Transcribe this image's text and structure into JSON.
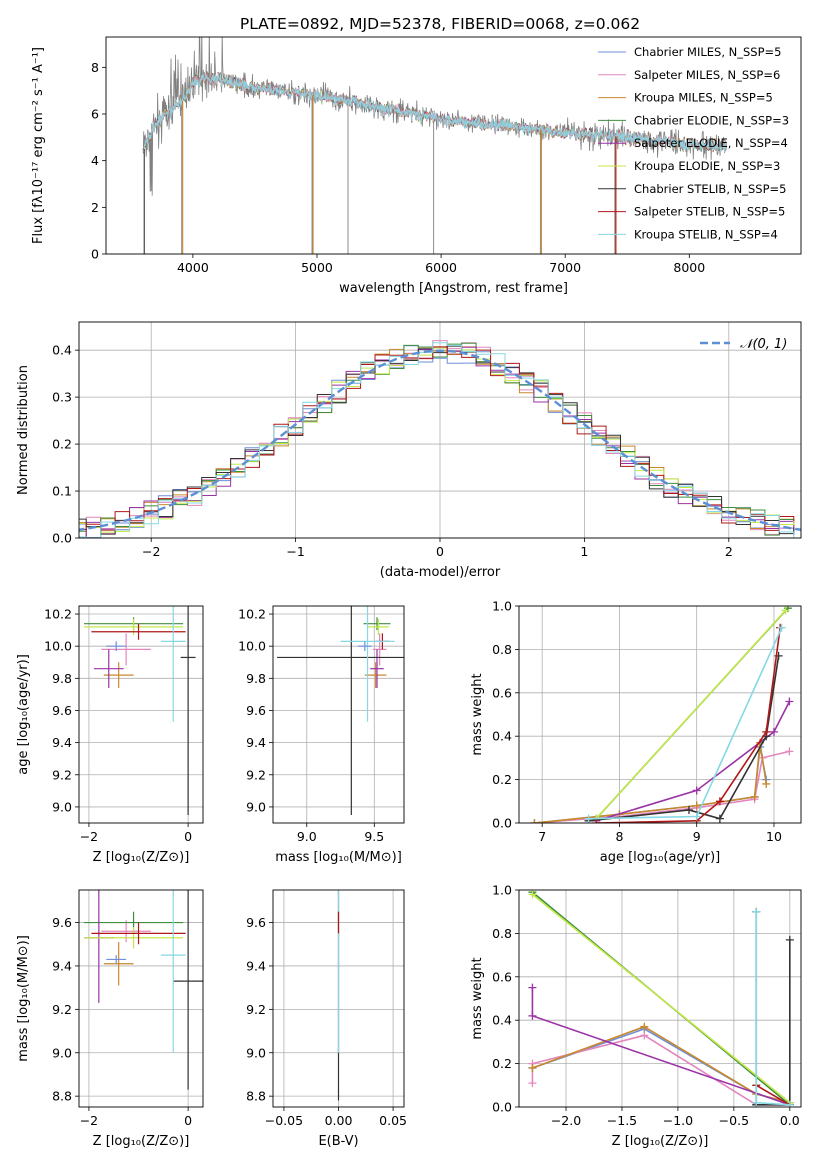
{
  "title": "PLATE=0892, MJD=52378, FIBERID=0068, z=0.062",
  "series_colors": [
    "#6f8fd8",
    "#e487bf",
    "#c8892c",
    "#3f8f3f",
    "#9b32a6",
    "#c4e84a",
    "#333333",
    "#b01818",
    "#86d8e4"
  ],
  "chart_data": [
    {
      "id": "spectrum",
      "type": "line",
      "xlabel": "wavelength [Angstrom, rest frame]",
      "ylabel": "Flux [fλ10⁻¹⁷ erg cm⁻² s⁻¹ A⁻¹]",
      "xlim": [
        3300,
        8900
      ],
      "ylim": [
        0,
        9.3
      ],
      "xticks": [
        4000,
        5000,
        6000,
        7000,
        8000
      ],
      "yticks": [
        0,
        2,
        4,
        6,
        8
      ],
      "grid": false,
      "legend_position": "top-right",
      "data_color": "#808080",
      "legend": [
        {
          "label": "Chabrier MILES, N_SSP=5"
        },
        {
          "label": "Salpeter MILES, N_SSP=6"
        },
        {
          "label": "Kroupa MILES, N_SSP=5"
        },
        {
          "label": "Chabrier ELODIE, N_SSP=3"
        },
        {
          "label": "Salpeter ELODIE, N_SSP=4"
        },
        {
          "label": "Kroupa ELODIE, N_SSP=3"
        },
        {
          "label": "Chabrier STELIB, N_SSP=5"
        },
        {
          "label": "Salpeter STELIB, N_SSP=5"
        },
        {
          "label": "Kroupa STELIB, N_SSP=4"
        }
      ],
      "continuum": {
        "x": [
          3600,
          3700,
          3800,
          3900,
          4000,
          4100,
          4300,
          4500,
          5000,
          5500,
          6000,
          6500,
          7000,
          7500,
          8000,
          8300
        ],
        "y": [
          4.5,
          5.6,
          6.0,
          6.5,
          7.3,
          7.6,
          7.4,
          7.1,
          6.8,
          6.3,
          5.8,
          5.5,
          5.2,
          5.0,
          4.7,
          4.6
        ]
      },
      "spikes_down": [
        3910,
        4960,
        5250,
        5940,
        6800,
        7400
      ]
    },
    {
      "id": "residuals",
      "type": "histogram",
      "xlabel": "(data-model)/error",
      "ylabel": "Normed distribution",
      "xlim": [
        -2.5,
        2.5
      ],
      "ylim": [
        0,
        0.46
      ],
      "xticks": [
        -2,
        -1,
        0,
        1,
        2
      ],
      "yticks": [
        0.0,
        0.1,
        0.2,
        0.3,
        0.4
      ],
      "grid": true,
      "legend_position": "top-right",
      "normal_label": "𝒩(0, 1)",
      "normal_color": "#5b8fd6",
      "bin_width": 0.1
    },
    {
      "id": "age_vs_Z",
      "type": "errorbar",
      "xlabel": "Z [log₁₀(Z/Z⊙)]",
      "ylabel": "age  [log₁₀(age/yr)]",
      "xlim": [
        -2.2,
        0.3
      ],
      "ylim": [
        8.9,
        10.25
      ],
      "xticks": [
        -2,
        0
      ],
      "yticks": [
        9.0,
        9.2,
        9.4,
        9.6,
        9.8,
        10.0,
        10.2
      ],
      "grid": true,
      "points": [
        {
          "x": -1.25,
          "xerr": 0.5,
          "y": 9.98,
          "yerr": 0.1,
          "color": 1
        },
        {
          "x": -1.4,
          "xerr": 0.3,
          "y": 9.82,
          "yerr": 0.08,
          "color": 2
        },
        {
          "x": -1.1,
          "xerr": 1.0,
          "y": 10.14,
          "yerr": 0.04,
          "color": 3
        },
        {
          "x": -1.6,
          "xerr": 0.3,
          "y": 9.86,
          "yerr": 0.12,
          "color": 4
        },
        {
          "x": -1.1,
          "xerr": 1.0,
          "y": 10.12,
          "yerr": 0.05,
          "color": 5
        },
        {
          "x": 0.0,
          "xerr": 0.15,
          "y": 9.93,
          "yerr": 0.98,
          "color": 6
        },
        {
          "x": -1.0,
          "xerr": 0.95,
          "y": 10.09,
          "yerr": 0.05,
          "color": 7
        },
        {
          "x": -0.3,
          "xerr": 0.25,
          "y": 10.03,
          "yerr": 0.5,
          "color": 8
        },
        {
          "x": -1.45,
          "xerr": 0.2,
          "y": 10.0,
          "yerr": 0.03,
          "color": 0
        }
      ]
    },
    {
      "id": "age_vs_mass",
      "type": "errorbar",
      "xlabel": "mass [log₁₀(M/M⊙)]",
      "ylabel": "",
      "xlim": [
        8.75,
        9.72
      ],
      "ylim": [
        8.9,
        10.25
      ],
      "xticks": [
        9.0,
        9.5
      ],
      "yticks": [
        9.0,
        9.2,
        9.4,
        9.6,
        9.8,
        10.0,
        10.2
      ],
      "grid": true,
      "points": [
        {
          "x": 9.54,
          "xerr": 0.05,
          "y": 9.98,
          "yerr": 0.1,
          "color": 1
        },
        {
          "x": 9.51,
          "xerr": 0.08,
          "y": 9.82,
          "yerr": 0.08,
          "color": 2
        },
        {
          "x": 9.52,
          "xerr": 0.1,
          "y": 10.14,
          "yerr": 0.04,
          "color": 3
        },
        {
          "x": 9.52,
          "xerr": 0.05,
          "y": 9.86,
          "yerr": 0.12,
          "color": 4
        },
        {
          "x": 9.53,
          "xerr": 0.08,
          "y": 10.12,
          "yerr": 0.05,
          "color": 5
        },
        {
          "x": 9.33,
          "xerr": 0.55,
          "y": 9.93,
          "yerr": 0.98,
          "color": 6
        },
        {
          "x": 9.56,
          "xerr": 0.05,
          "y": 10.03,
          "yerr": 0.05,
          "color": 7
        },
        {
          "x": 9.45,
          "xerr": 0.2,
          "y": 10.03,
          "yerr": 0.5,
          "color": 8
        },
        {
          "x": 9.43,
          "xerr": 0.05,
          "y": 10.0,
          "yerr": 0.03,
          "color": 0
        }
      ]
    },
    {
      "id": "weight_vs_age",
      "type": "line",
      "xlabel": "age  [log₁₀(age/yr)]",
      "ylabel": "mass weight",
      "xlim": [
        6.7,
        10.35
      ],
      "ylim": [
        0.0,
        1.0
      ],
      "xticks": [
        7,
        8,
        9,
        10
      ],
      "yticks": [
        0.0,
        0.2,
        0.4,
        0.6,
        0.8,
        1.0
      ],
      "grid": true,
      "series": [
        {
          "color": 0,
          "x": [
            6.9,
            8.0,
            9.0,
            9.75,
            9.82,
            9.9
          ],
          "y": [
            0.0,
            0.04,
            0.08,
            0.12,
            0.35,
            0.2
          ]
        },
        {
          "color": 1,
          "x": [
            6.9,
            8.0,
            9.0,
            9.75,
            9.85,
            10.2
          ],
          "y": [
            0.0,
            0.03,
            0.07,
            0.11,
            0.3,
            0.33
          ]
        },
        {
          "color": 2,
          "x": [
            6.9,
            8.0,
            9.0,
            9.75,
            9.82,
            9.9
          ],
          "y": [
            0.0,
            0.04,
            0.08,
            0.12,
            0.37,
            0.18
          ]
        },
        {
          "color": 3,
          "x": [
            7.7,
            10.18
          ],
          "y": [
            0.02,
            0.99
          ]
        },
        {
          "color": 4,
          "x": [
            7.7,
            9.0,
            10.0,
            10.2
          ],
          "y": [
            0.01,
            0.15,
            0.42,
            0.56
          ]
        },
        {
          "color": 5,
          "x": [
            7.7,
            10.15
          ],
          "y": [
            0.02,
            0.98
          ]
        },
        {
          "color": 6,
          "x": [
            7.6,
            8.9,
            9.3,
            9.9,
            10.06
          ],
          "y": [
            0.01,
            0.06,
            0.02,
            0.4,
            0.77
          ]
        },
        {
          "color": 7,
          "x": [
            7.7,
            9.0,
            9.3,
            9.9,
            10.08
          ],
          "y": [
            0.0,
            0.01,
            0.1,
            0.42,
            0.9
          ]
        },
        {
          "color": 8,
          "x": [
            7.6,
            9.0,
            10.1
          ],
          "y": [
            0.02,
            0.03,
            0.9
          ]
        }
      ]
    },
    {
      "id": "mass_vs_Z",
      "type": "errorbar",
      "xlabel": "Z [log₁₀(Z/Z⊙)]",
      "ylabel": "mass [log₁₀(M/M⊙)]",
      "xlim": [
        -2.2,
        0.3
      ],
      "ylim": [
        8.75,
        9.75
      ],
      "xticks": [
        -2,
        0
      ],
      "yticks": [
        8.8,
        9.0,
        9.2,
        9.4,
        9.6
      ],
      "grid": true,
      "points": [
        {
          "x": -1.25,
          "xerr": 0.5,
          "y": 9.56,
          "yerr": 0.05,
          "color": 1
        },
        {
          "x": -1.4,
          "xerr": 0.3,
          "y": 9.41,
          "yerr": 0.1,
          "color": 2
        },
        {
          "x": -1.1,
          "xerr": 1.0,
          "y": 9.6,
          "yerr": 0.05,
          "color": 3
        },
        {
          "x": -1.8,
          "xerr": 0.3,
          "y": 9.53,
          "yerr": 0.3,
          "color": 4
        },
        {
          "x": -1.1,
          "xerr": 1.0,
          "y": 9.53,
          "yerr": 0.05,
          "color": 5
        },
        {
          "x": 0.0,
          "xerr": 0.3,
          "y": 9.33,
          "yerr": 0.5,
          "color": 6
        },
        {
          "x": -1.0,
          "xerr": 0.95,
          "y": 9.55,
          "yerr": 0.05,
          "color": 7
        },
        {
          "x": -0.3,
          "xerr": 0.25,
          "y": 9.45,
          "yerr": 0.45,
          "color": 8
        },
        {
          "x": -1.45,
          "xerr": 0.2,
          "y": 9.43,
          "yerr": 0.02,
          "color": 0
        }
      ]
    },
    {
      "id": "mass_vs_ebv",
      "type": "errorbar",
      "xlabel": "E(B-V)",
      "ylabel": "",
      "xlim": [
        -0.06,
        0.06
      ],
      "ylim": [
        8.75,
        9.75
      ],
      "xticks": [
        -0.05,
        0.0,
        0.05
      ],
      "yticks": [
        8.8,
        9.0,
        9.2,
        9.4,
        9.6
      ],
      "grid": true,
      "points": [
        {
          "x": 0.0,
          "xerr": 0.0,
          "y": 9.33,
          "yerr": 0.55,
          "color": 6
        },
        {
          "x": 0.0,
          "xerr": 0.0,
          "y": 9.45,
          "yerr": 0.45,
          "color": 8
        },
        {
          "x": 0.0,
          "xerr": 0.0,
          "y": 9.6,
          "yerr": 0.05,
          "color": 7
        }
      ]
    },
    {
      "id": "weight_vs_Z",
      "type": "line",
      "xlabel": "Z [log₁₀(Z/Z⊙)]",
      "ylabel": "mass weight",
      "xlim": [
        -2.42,
        0.1
      ],
      "ylim": [
        0.0,
        1.0
      ],
      "xticks": [
        -2.0,
        -1.5,
        -1.0,
        -0.5,
        0.0
      ],
      "yticks": [
        0.0,
        0.2,
        0.4,
        0.6,
        0.8,
        1.0
      ],
      "grid": true,
      "series": [
        {
          "color": 0,
          "x": [
            -2.3,
            -1.3,
            -0.3,
            0.0
          ],
          "y": [
            0.18,
            0.36,
            0.06,
            0.02
          ]
        },
        {
          "color": 1,
          "x": [
            -2.3,
            -2.3,
            -1.3,
            -0.3,
            0.0
          ],
          "y": [
            0.11,
            0.2,
            0.33,
            0.01,
            0.01
          ]
        },
        {
          "color": 2,
          "x": [
            -2.3,
            -1.3,
            -0.3,
            0.0
          ],
          "y": [
            0.18,
            0.37,
            0.06,
            0.02
          ]
        },
        {
          "color": 3,
          "x": [
            -2.3,
            0.0
          ],
          "y": [
            0.99,
            0.01
          ]
        },
        {
          "color": 4,
          "x": [
            -2.3,
            -2.3,
            0.0
          ],
          "y": [
            0.55,
            0.42,
            0.01
          ]
        },
        {
          "color": 5,
          "x": [
            -2.3,
            0.0
          ],
          "y": [
            0.98,
            0.02
          ]
        },
        {
          "color": 6,
          "x": [
            -0.3,
            -0.3,
            0.0,
            0.0
          ],
          "y": [
            0.9,
            0.01,
            0.01,
            0.77
          ]
        },
        {
          "color": 7,
          "x": [
            -0.3,
            0.0
          ],
          "y": [
            0.1,
            0.01
          ]
        },
        {
          "color": 8,
          "x": [
            -0.3,
            -0.3,
            0.0
          ],
          "y": [
            0.9,
            0.02,
            0.01
          ]
        }
      ]
    }
  ]
}
